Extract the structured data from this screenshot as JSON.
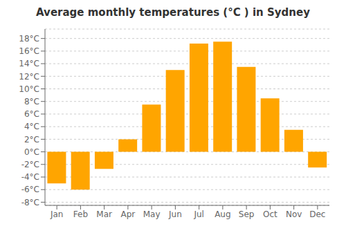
{
  "chart_data": {
    "type": "bar",
    "title": "Average monthly temperatures (°C ) in Sydney",
    "categories": [
      "Jan",
      "Feb",
      "Mar",
      "Apr",
      "May",
      "Jun",
      "Jul",
      "Aug",
      "Sep",
      "Oct",
      "Nov",
      "Dec"
    ],
    "values": [
      -5.0,
      -6.0,
      -2.7,
      2.0,
      7.5,
      13.0,
      17.2,
      17.5,
      13.5,
      8.5,
      3.5,
      -2.5
    ],
    "color": "#FFA500",
    "ylim": [
      -8.5,
      19.5
    ],
    "yticks": [
      {
        "value": -8,
        "label": "-8°C"
      },
      {
        "value": -6,
        "label": "-6°C"
      },
      {
        "value": -4,
        "label": "-4°C"
      },
      {
        "value": -2,
        "label": "-2°C"
      },
      {
        "value": 0,
        "label": "0°C"
      },
      {
        "value": 2,
        "label": "2°C"
      },
      {
        "value": 4,
        "label": "4°C"
      },
      {
        "value": 6,
        "label": "6°C"
      },
      {
        "value": 8,
        "label": "8°C"
      },
      {
        "value": 10,
        "label": "10°C"
      },
      {
        "value": 12,
        "label": "12°C"
      },
      {
        "value": 14,
        "label": "14°C"
      },
      {
        "value": 16,
        "label": "16°C"
      },
      {
        "value": 18,
        "label": "18°C"
      }
    ],
    "grid": true
  }
}
